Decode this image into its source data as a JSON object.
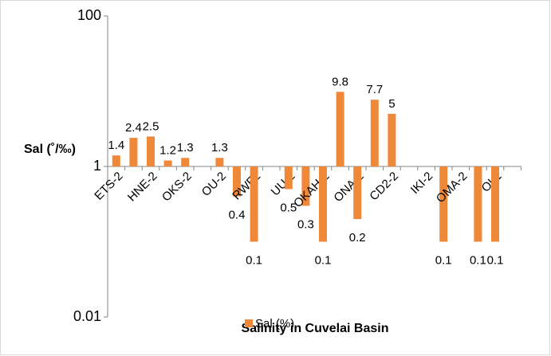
{
  "chart_data": {
    "type": "bar",
    "title": "Salinity in Cuvelai Basin",
    "y_label": "Sal (˚/‰)",
    "categories": [
      "ETS-2",
      null,
      "HNE-2",
      null,
      "OKS-2",
      null,
      "OU-2",
      null,
      "RWF2",
      null,
      "UU-2",
      null,
      "OKAH-2",
      null,
      "ONA-2",
      null,
      "CD2-2",
      null,
      "IKI-2",
      null,
      "OMA-2",
      null,
      "OL1"
    ],
    "series": [
      {
        "name": "Sal (%)",
        "color": "#F0883A",
        "values": [
          1.4,
          2.4,
          2.5,
          1.2,
          1.3,
          null,
          1.3,
          0.4,
          0.1,
          null,
          0.5,
          0.3,
          0.1,
          9.8,
          0.2,
          7.7,
          5,
          null,
          null,
          0.1,
          null,
          0.1,
          0.1
        ]
      }
    ],
    "ylim": [
      0.01,
      100
    ],
    "yticks": [
      0.01,
      1,
      100
    ],
    "log_scale": true,
    "axis_crossing": 1,
    "legend": "bottom"
  }
}
